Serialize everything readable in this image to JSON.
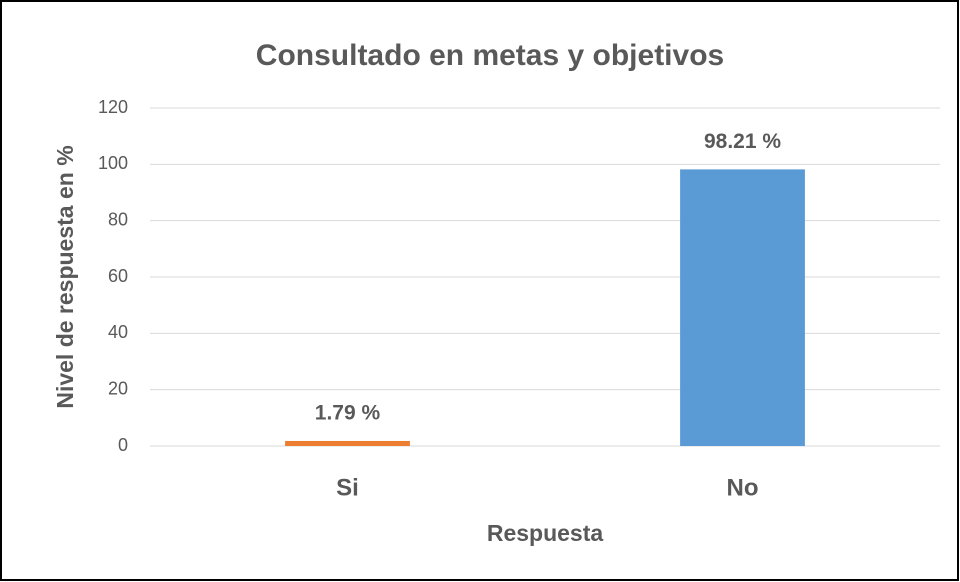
{
  "chart_data": {
    "type": "bar",
    "title": "Consultado en metas y objetivos",
    "xlabel": "Respuesta",
    "ylabel": "Nivel de respuesta en %",
    "categories": [
      "Si",
      "No"
    ],
    "values": [
      1.79,
      98.21
    ],
    "value_labels": [
      "1.79 %",
      "98.21 %"
    ],
    "colors": [
      "#ed7d31",
      "#5b9bd5"
    ],
    "ylim": [
      0,
      120
    ],
    "yticks": [
      0,
      20,
      40,
      60,
      80,
      100,
      120
    ],
    "grid": true
  }
}
